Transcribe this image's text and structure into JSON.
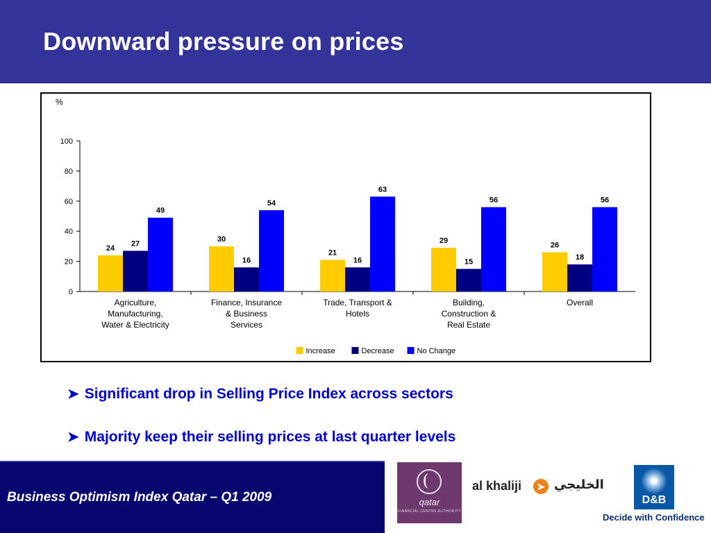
{
  "slide": {
    "title": "Downward pressure on prices"
  },
  "bullets": [
    "Significant drop in Selling Price Index across sectors",
    "Majority keep their selling prices at last quarter levels"
  ],
  "footer": {
    "text": "Business Optimism Index Qatar – Q1 2009"
  },
  "logos": {
    "qfc": {
      "word": "qatar",
      "subtitle": "FINANCIAL CENTRE AUTHORITY",
      "color": "#6e3a6e"
    },
    "alkhaliji": {
      "latin": "al khaliji",
      "arabic": "الخليجي",
      "accent": "#ef7f1a"
    },
    "db": {
      "word": "D&B",
      "tagline": "Decide with Confidence",
      "color": "#0a57a5"
    }
  },
  "colors": {
    "header_bg": "#33339a",
    "footer_bg": "#06066e",
    "bullet_text": "#0000cc"
  },
  "chart_data": {
    "type": "bar",
    "unit_label": "%",
    "categories": [
      [
        "Agriculture,",
        "Manufacturing,",
        "Water & Electricity"
      ],
      [
        "Finance, Insurance",
        "& Business",
        "Services"
      ],
      [
        "Trade, Transport &",
        "Hotels"
      ],
      [
        "Building,",
        "Construction &",
        "Real Estate"
      ],
      [
        "Overall"
      ]
    ],
    "series": [
      {
        "name": "Increase",
        "color": "#ffcc00",
        "values": [
          24,
          30,
          21,
          29,
          26
        ]
      },
      {
        "name": "Decrease",
        "color": "#000080",
        "values": [
          27,
          16,
          16,
          15,
          18
        ]
      },
      {
        "name": "No Change",
        "color": "#0000ff",
        "values": [
          49,
          54,
          63,
          56,
          56
        ]
      }
    ],
    "ylim": [
      0,
      100
    ],
    "yticks": [
      0,
      20,
      40,
      60,
      80,
      100
    ],
    "grid": false,
    "legend": "bottom-center",
    "data_labels": true
  }
}
